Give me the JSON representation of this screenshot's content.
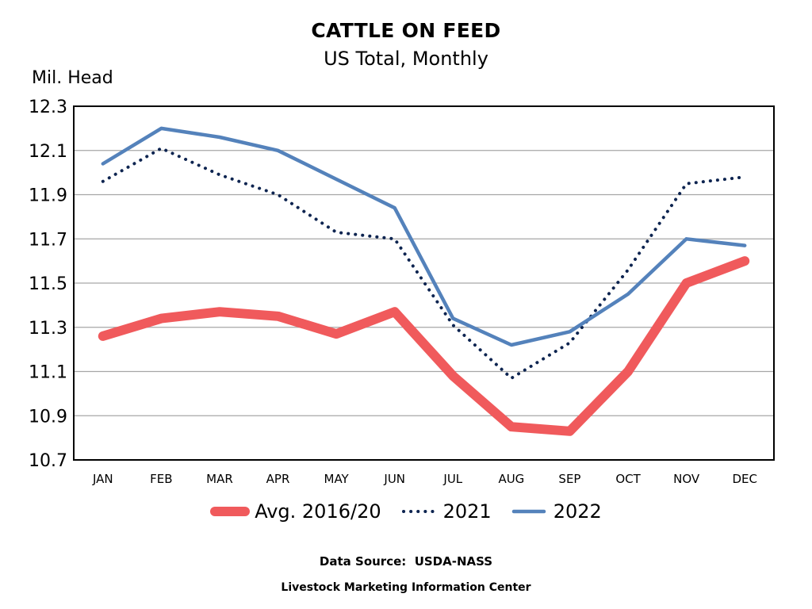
{
  "chart_data": {
    "type": "line",
    "title": "CATTLE ON FEED",
    "subtitle": "US Total, Monthly",
    "ylabel": "Mil. Head",
    "xlabel": "",
    "categories": [
      "JAN",
      "FEB",
      "MAR",
      "APR",
      "MAY",
      "JUN",
      "JUL",
      "AUG",
      "SEP",
      "OCT",
      "NOV",
      "DEC"
    ],
    "ylim": [
      10.7,
      12.3
    ],
    "yticks": [
      "10.7",
      "10.9",
      "11.1",
      "11.3",
      "11.5",
      "11.7",
      "11.9",
      "12.1",
      "12.3"
    ],
    "grid": true,
    "legend_position": "bottom",
    "series": [
      {
        "name": "Avg. 2016/20",
        "color": "#f05a5c",
        "style": "thick-solid",
        "values": [
          11.26,
          11.34,
          11.37,
          11.35,
          11.27,
          11.37,
          11.08,
          10.85,
          10.83,
          11.1,
          11.5,
          11.6
        ]
      },
      {
        "name": "2021",
        "color": "#0d2450",
        "style": "dotted",
        "values": [
          11.96,
          12.11,
          11.99,
          11.9,
          11.73,
          11.7,
          11.31,
          11.07,
          11.23,
          11.56,
          11.95,
          11.98
        ]
      },
      {
        "name": "2022",
        "color": "#5482bb",
        "style": "solid",
        "values": [
          12.04,
          12.2,
          12.16,
          12.1,
          11.97,
          11.84,
          11.34,
          11.22,
          11.28,
          11.45,
          11.7,
          11.67
        ]
      }
    ]
  },
  "footer": {
    "source": "Data Source:  USDA-NASS",
    "credit": "Livestock Marketing Information Center"
  }
}
